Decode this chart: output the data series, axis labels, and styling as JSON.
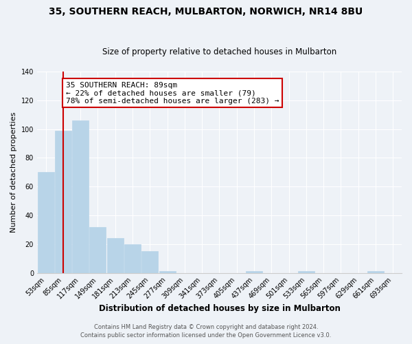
{
  "title": "35, SOUTHERN REACH, MULBARTON, NORWICH, NR14 8BU",
  "subtitle": "Size of property relative to detached houses in Mulbarton",
  "xlabel": "Distribution of detached houses by size in Mulbarton",
  "ylabel": "Number of detached properties",
  "bar_labels": [
    "53sqm",
    "85sqm",
    "117sqm",
    "149sqm",
    "181sqm",
    "213sqm",
    "245sqm",
    "277sqm",
    "309sqm",
    "341sqm",
    "373sqm",
    "405sqm",
    "437sqm",
    "469sqm",
    "501sqm",
    "533sqm",
    "565sqm",
    "597sqm",
    "629sqm",
    "661sqm",
    "693sqm"
  ],
  "bar_heights": [
    70,
    99,
    106,
    32,
    24,
    20,
    15,
    1,
    0,
    0,
    0,
    0,
    1,
    0,
    0,
    1,
    0,
    0,
    0,
    1,
    0
  ],
  "bar_color": "#b8d4e8",
  "bar_edgecolor": "#b8d4e8",
  "annotation_line1": "35 SOUTHERN REACH: 89sqm",
  "annotation_line2": "← 22% of detached houses are smaller (79)",
  "annotation_line3": "78% of semi-detached houses are larger (283) →",
  "annotation_box_edgecolor": "#cc0000",
  "annotation_box_facecolor": "#ffffff",
  "vline_color": "#cc0000",
  "vline_x_index": 1,
  "ylim": [
    0,
    140
  ],
  "yticks": [
    0,
    20,
    40,
    60,
    80,
    100,
    120,
    140
  ],
  "footer_line1": "Contains HM Land Registry data © Crown copyright and database right 2024.",
  "footer_line2": "Contains public sector information licensed under the Open Government Licence v3.0.",
  "background_color": "#eef2f7",
  "grid_color": "#ffffff",
  "title_fontsize": 10,
  "subtitle_fontsize": 8.5,
  "xlabel_fontsize": 8.5,
  "ylabel_fontsize": 8,
  "tick_fontsize": 7,
  "footer_fontsize": 6,
  "annotation_fontsize": 8
}
